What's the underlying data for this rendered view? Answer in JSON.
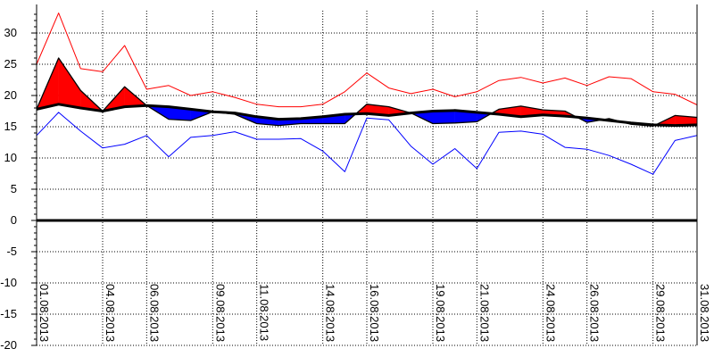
{
  "chart_data": {
    "type": "line",
    "title": "",
    "xlabel": "",
    "ylabel": "",
    "ylim": [
      -20,
      33
    ],
    "yticks": [
      30,
      25,
      20,
      15,
      10,
      5,
      0,
      -5,
      -10,
      -15,
      -20
    ],
    "grid": true,
    "legend": "none",
    "x": [
      "01.08.2013",
      "02.08.2013",
      "03.08.2013",
      "04.08.2013",
      "05.08.2013",
      "06.08.2013",
      "07.08.2013",
      "08.08.2013",
      "09.08.2013",
      "10.08.2013",
      "11.08.2013",
      "12.08.2013",
      "13.08.2013",
      "14.08.2013",
      "15.08.2013",
      "16.08.2013",
      "17.08.2013",
      "18.08.2013",
      "19.08.2013",
      "20.08.2013",
      "21.08.2013",
      "22.08.2013",
      "23.08.2013",
      "24.08.2013",
      "25.08.2013",
      "26.08.2013",
      "27.08.2013",
      "28.08.2013",
      "29.08.2013",
      "30.08.2013",
      "31.08.2013"
    ],
    "xtick_labels": [
      "01.08.2013",
      "04.08.2013",
      "06.08.2013",
      "09.08.2013",
      "11.08.2013",
      "14.08.2013",
      "16.08.2013",
      "19.08.2013",
      "21.08.2013",
      "24.08.2013",
      "26.08.2013",
      "29.08.2013",
      "31.08.2013"
    ],
    "series": [
      {
        "color": "#ff0000",
        "values": [
          25,
          33.2,
          24.3,
          23.8,
          28,
          21,
          21.6,
          20,
          20.6,
          19.7,
          18.6,
          18.2,
          18.2,
          18.6,
          20.6,
          23.6,
          21.2,
          20.3,
          21,
          19.8,
          20.6,
          22.4,
          22.9,
          22,
          22.8,
          21.6,
          23,
          22.7,
          20.6,
          20.2,
          18.5
        ]
      },
      {
        "color": "#0000ff",
        "values": [
          13.6,
          17.3,
          14.3,
          11.6,
          12.2,
          13.6,
          10.2,
          13.3,
          13.6,
          14.2,
          13,
          13,
          13.1,
          11.1,
          7.8,
          16.4,
          16.1,
          11.9,
          9,
          11.5,
          8.3,
          14.1,
          14.3,
          13.8,
          11.7,
          11.4,
          10.4,
          9,
          7.4,
          12.8,
          13.6
        ]
      },
      {
        "color": "#000000",
        "values": [
          17.8,
          18.6,
          18,
          17.5,
          18.2,
          18.4,
          18.2,
          17.8,
          17.4,
          17.2,
          16.6,
          16.2,
          16.3,
          16.6,
          17,
          17.1,
          16.8,
          17.2,
          17.5,
          17.6,
          17.3,
          17,
          16.6,
          16.9,
          16.7,
          16.4,
          16,
          15.6,
          15.3,
          15.2,
          15.3
        ]
      },
      {
        "color": "#000000",
        "values": [
          17.8,
          26,
          20.8,
          17.5,
          21.4,
          18.4,
          16.2,
          16,
          17.4,
          17,
          15.5,
          15.2,
          15.5,
          15.5,
          15.5,
          18.6,
          18.2,
          17.2,
          15.5,
          15.6,
          15.8,
          17.8,
          18.3,
          17.7,
          17.5,
          15.7,
          16.3,
          15.4,
          15.1,
          16.8,
          16.5
        ]
      }
    ]
  }
}
